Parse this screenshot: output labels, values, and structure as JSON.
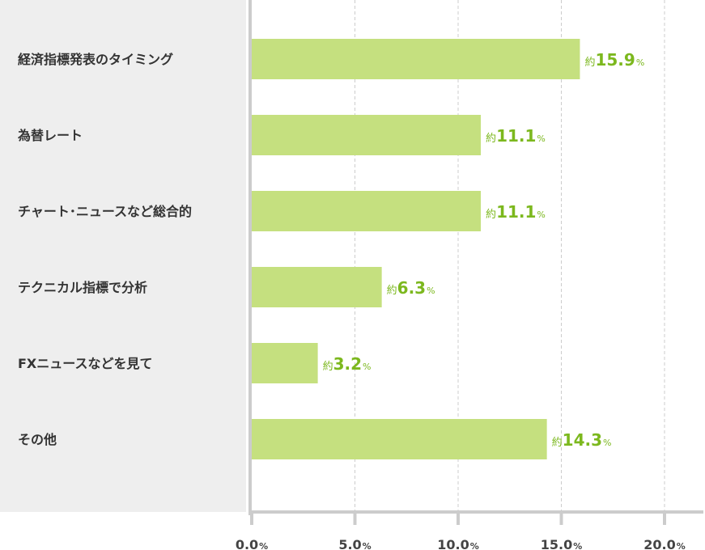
{
  "chart_data": {
    "type": "bar",
    "orientation": "horizontal",
    "categories": [
      "経済指標発表のタイミング",
      "為替レート",
      "チャート･ニュースなど総合的",
      "テクニカル指標で分析",
      "FXニュースなどを見て",
      "その他"
    ],
    "values": [
      15.9,
      11.1,
      11.1,
      6.3,
      3.2,
      14.3
    ],
    "value_labels": [
      "15.9",
      "11.1",
      "11.1",
      "6.3",
      "3.2",
      "14.3"
    ],
    "value_prefix": "約",
    "value_unit": "%",
    "xlim": [
      0,
      20
    ],
    "ticks": [
      "0.0",
      "5.0",
      "10.0",
      "15.0",
      "20.0"
    ],
    "tick_values": [
      0,
      5,
      10,
      15,
      20
    ],
    "tick_unit": "%",
    "grid": true,
    "colors": {
      "bar": "#c5e07f",
      "label_panel": "#eeeeee",
      "value_text": "#7cb81e",
      "axis": "#cccccc",
      "grid": "#cccccc",
      "category_text": "#333333",
      "tick_text": "#444444"
    }
  }
}
